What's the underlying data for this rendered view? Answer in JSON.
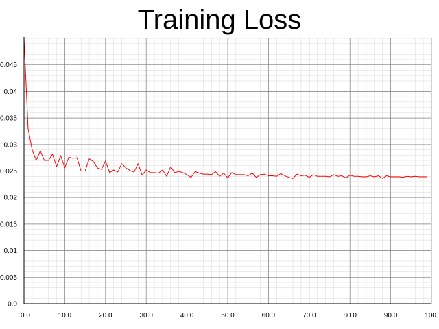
{
  "chart_data": {
    "type": "line",
    "title": "Training Loss",
    "xlabel": "",
    "ylabel": "",
    "xlim": [
      0,
      100
    ],
    "ylim": [
      0,
      0.05
    ],
    "grid": true,
    "x_ticks": [
      "0.0",
      "10.0",
      "20.0",
      "30.0",
      "40.0",
      "50.0",
      "60.0",
      "70.0",
      "80.0",
      "90.0",
      "100."
    ],
    "y_ticks": [
      "0.0",
      "0.005",
      "0.01",
      "0.015",
      "0.02",
      "0.025",
      "0.03",
      "0.035",
      "0.04",
      "0.045"
    ],
    "x_tick_values": [
      0,
      10,
      20,
      30,
      40,
      50,
      60,
      70,
      80,
      90,
      100
    ],
    "y_tick_values": [
      0,
      0.005,
      0.01,
      0.015,
      0.02,
      0.025,
      0.03,
      0.035,
      0.04,
      0.045
    ],
    "colors": {
      "line": "#ff0000",
      "axis": "#000000",
      "major_grid": "#808080",
      "minor_grid": "#d8d8d8"
    },
    "series": [
      {
        "values": [
          [
            0,
            0.05
          ],
          [
            1,
            0.033
          ],
          [
            2,
            0.029
          ],
          [
            3,
            0.027
          ],
          [
            4,
            0.0288
          ],
          [
            5,
            0.027
          ],
          [
            6,
            0.027
          ],
          [
            7,
            0.0282
          ],
          [
            8,
            0.0258
          ],
          [
            9,
            0.0279
          ],
          [
            10,
            0.0256
          ],
          [
            11,
            0.0276
          ],
          [
            12,
            0.0274
          ],
          [
            13,
            0.0275
          ],
          [
            14,
            0.025
          ],
          [
            15,
            0.025
          ],
          [
            16,
            0.0273
          ],
          [
            17,
            0.0268
          ],
          [
            18,
            0.0256
          ],
          [
            19,
            0.0253
          ],
          [
            20,
            0.0269
          ],
          [
            21,
            0.0247
          ],
          [
            22,
            0.0252
          ],
          [
            23,
            0.0248
          ],
          [
            24,
            0.0264
          ],
          [
            25,
            0.0256
          ],
          [
            26,
            0.0251
          ],
          [
            27,
            0.0248
          ],
          [
            28,
            0.0264
          ],
          [
            29,
            0.0242
          ],
          [
            30,
            0.0252
          ],
          [
            31,
            0.0247
          ],
          [
            32,
            0.0247
          ],
          [
            33,
            0.0246
          ],
          [
            34,
            0.0252
          ],
          [
            35,
            0.024
          ],
          [
            36,
            0.0258
          ],
          [
            37,
            0.0247
          ],
          [
            38,
            0.0249
          ],
          [
            39,
            0.0247
          ],
          [
            40,
            0.0243
          ],
          [
            41,
            0.0238
          ],
          [
            42,
            0.0249
          ],
          [
            43,
            0.0246
          ],
          [
            44,
            0.0244
          ],
          [
            45,
            0.0244
          ],
          [
            46,
            0.0243
          ],
          [
            47,
            0.0249
          ],
          [
            48,
            0.024
          ],
          [
            49,
            0.0246
          ],
          [
            50,
            0.0237
          ],
          [
            51,
            0.0247
          ],
          [
            52,
            0.0243
          ],
          [
            53,
            0.0243
          ],
          [
            54,
            0.0243
          ],
          [
            55,
            0.0241
          ],
          [
            56,
            0.0246
          ],
          [
            57,
            0.0238
          ],
          [
            58,
            0.0243
          ],
          [
            59,
            0.0244
          ],
          [
            60,
            0.0241
          ],
          [
            61,
            0.0241
          ],
          [
            62,
            0.024
          ],
          [
            63,
            0.0245
          ],
          [
            64,
            0.0241
          ],
          [
            65,
            0.0238
          ],
          [
            66,
            0.0236
          ],
          [
            67,
            0.0244
          ],
          [
            68,
            0.0241
          ],
          [
            69,
            0.0242
          ],
          [
            70,
            0.0238
          ],
          [
            71,
            0.0243
          ],
          [
            72,
            0.024
          ],
          [
            73,
            0.024
          ],
          [
            74,
            0.024
          ],
          [
            75,
            0.0239
          ],
          [
            76,
            0.0243
          ],
          [
            77,
            0.024
          ],
          [
            78,
            0.0241
          ],
          [
            79,
            0.0237
          ],
          [
            80,
            0.0242
          ],
          [
            81,
            0.024
          ],
          [
            82,
            0.024
          ],
          [
            83,
            0.0239
          ],
          [
            84,
            0.0239
          ],
          [
            85,
            0.0241
          ],
          [
            86,
            0.0239
          ],
          [
            87,
            0.0241
          ],
          [
            88,
            0.0236
          ],
          [
            89,
            0.0241
          ],
          [
            90,
            0.0239
          ],
          [
            91,
            0.0239
          ],
          [
            92,
            0.0239
          ],
          [
            93,
            0.0238
          ],
          [
            94,
            0.024
          ],
          [
            95,
            0.0239
          ],
          [
            96,
            0.024
          ],
          [
            97,
            0.0239
          ],
          [
            98,
            0.0239
          ],
          [
            99,
            0.0239
          ]
        ]
      }
    ]
  }
}
